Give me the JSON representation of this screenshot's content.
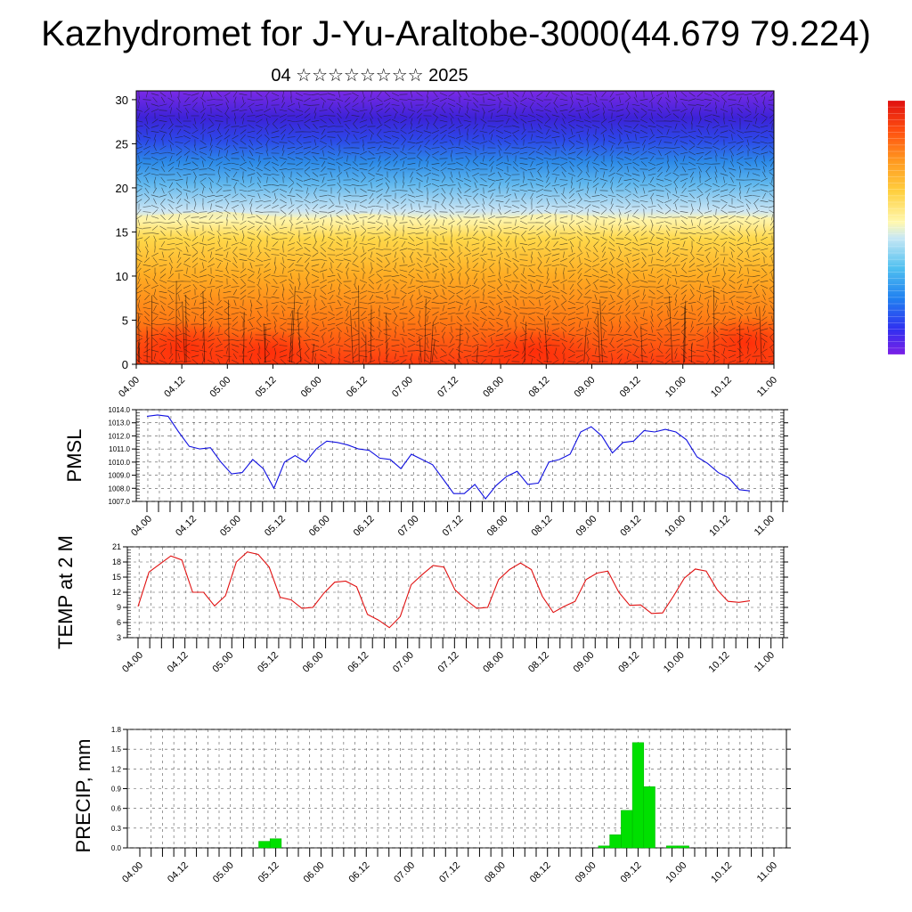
{
  "title": "Kazhydromet for J-Yu-Araltobe-3000(44.679 79.224)",
  "subtitle": "04 ☆☆☆☆☆☆☆☆ 2025",
  "colors": {
    "pmsl_line": "#1010e0",
    "temp_line": "#e01010",
    "precip_bar": "#00e000",
    "grid": "#444444"
  },
  "chart_data": [
    {
      "type": "heatmap",
      "name": "cross-section",
      "description_colors": [
        "#6a20e0",
        "#3c3cf0",
        "#2070f0",
        "#40b0f0",
        "#a8d8f0",
        "#fff4a0",
        "#ffd040",
        "#ffa020",
        "#ff7010",
        "#ff3010"
      ],
      "x_ticks": [
        "04.00",
        "04.12",
        "05.00",
        "05.12",
        "06.00",
        "06.12",
        "07.00",
        "07.12",
        "08.00",
        "08.12",
        "09.00",
        "09.12",
        "10.00",
        "10.12",
        "11.00"
      ],
      "y_ticks": [
        "0",
        "5",
        "10",
        "15",
        "20",
        "25",
        "30"
      ],
      "ylim": [
        0,
        31
      ],
      "boundary_yellow_blue": [
        16.5,
        16.8,
        17,
        16.5,
        16.2,
        16.8,
        16.4,
        16.0,
        16.3,
        16.8,
        16.5,
        16.0,
        16.4,
        16.6,
        16.3
      ],
      "boundary_warm_core": [
        9,
        9.5,
        10,
        9.8,
        9.5,
        10.2,
        10,
        9.6,
        10,
        10.4,
        10,
        9.6,
        10,
        10.2,
        10
      ],
      "colorbar": true
    },
    {
      "type": "line",
      "name": "PMSL",
      "ylabel": "PMSL",
      "ylim": [
        1007.0,
        1014.0
      ],
      "y_ticks": [
        "1007.0",
        "1008.0",
        "1009.0",
        "1010.0",
        "1011.0",
        "1012.0",
        "1013.0",
        "1014.0"
      ],
      "x_ticks": [
        "04.00",
        "04.12",
        "05.00",
        "05.12",
        "06.00",
        "06.12",
        "07.00",
        "07.12",
        "08.00",
        "08.12",
        "09.00",
        "09.12",
        "10.00",
        "10.12",
        "11.00"
      ],
      "series": [
        {
          "values": [
            1013.5,
            1013.6,
            1013.5,
            1012.3,
            1011.2,
            1011.0,
            1011.1,
            1010.0,
            1009.1,
            1009.2,
            1010.2,
            1009.5,
            1008.0,
            1010.0,
            1010.5,
            1010.0,
            1011.0,
            1011.6,
            1011.5,
            1011.3,
            1011.0,
            1010.9,
            1010.3,
            1010.2,
            1009.5,
            1010.6,
            1010.2,
            1009.8,
            1008.7,
            1007.6,
            1007.6,
            1008.3,
            1007.2,
            1008.2,
            1008.9,
            1009.3,
            1008.3,
            1008.4,
            1010.0,
            1010.2,
            1010.6,
            1012.3,
            1012.7,
            1012.0,
            1010.7,
            1011.5,
            1011.6,
            1012.4,
            1012.3,
            1012.5,
            1012.3,
            1011.7,
            1010.4,
            1009.9,
            1009.2,
            1008.8,
            1007.9,
            1007.8
          ]
        }
      ]
    },
    {
      "type": "line",
      "name": "TEMP at 2 M",
      "ylabel": "TEMP at 2 M",
      "ylim": [
        3,
        21
      ],
      "y_ticks": [
        "3",
        "6",
        "9",
        "12",
        "15",
        "18",
        "21"
      ],
      "x_ticks": [
        "04.00",
        "04.12",
        "05.00",
        "05.12",
        "06.00",
        "06.12",
        "07.00",
        "07.12",
        "08.00",
        "08.12",
        "09.00",
        "09.12",
        "10.00",
        "10.12",
        "11.00"
      ],
      "series": [
        {
          "values": [
            9.2,
            16.0,
            17.6,
            19.2,
            18.4,
            12.0,
            12.0,
            9.3,
            11.3,
            18.0,
            20.0,
            19.5,
            17.0,
            11.0,
            10.5,
            8.8,
            9.0,
            11.8,
            14.0,
            14.2,
            13.1,
            7.6,
            6.5,
            5.0,
            7.2,
            13.5,
            15.5,
            17.3,
            17.0,
            12.5,
            10.5,
            8.8,
            9.0,
            14.5,
            16.5,
            17.8,
            16.5,
            11.2,
            8.0,
            9.2,
            10.2,
            14.5,
            15.8,
            16.2,
            12.0,
            9.4,
            9.5,
            7.8,
            7.9,
            11.2,
            14.8,
            16.6,
            16.2,
            12.5,
            10.2,
            10.0,
            10.3
          ]
        }
      ]
    },
    {
      "type": "bar",
      "name": "PRECIP, mm",
      "ylabel": "PRECIP, mm",
      "ylim": [
        0,
        1.8
      ],
      "y_ticks": [
        "0.0",
        "0.3",
        "0.6",
        "0.9",
        "1.2",
        "1.5",
        "1.8"
      ],
      "x_ticks": [
        "04.00",
        "04.12",
        "05.00",
        "05.12",
        "06.00",
        "06.12",
        "07.00",
        "07.12",
        "08.00",
        "08.12",
        "09.00",
        "09.12",
        "10.00",
        "10.12",
        "11.00"
      ],
      "bars": [
        {
          "t": 11,
          "value": 0.1
        },
        {
          "t": 12,
          "value": 0.14
        },
        {
          "t": 41,
          "value": 0.03
        },
        {
          "t": 42,
          "value": 0.2
        },
        {
          "t": 43,
          "value": 0.57
        },
        {
          "t": 44,
          "value": 1.6
        },
        {
          "t": 45,
          "value": 0.93
        },
        {
          "t": 47,
          "value": 0.03
        },
        {
          "t": 48,
          "value": 0.03
        }
      ]
    }
  ]
}
